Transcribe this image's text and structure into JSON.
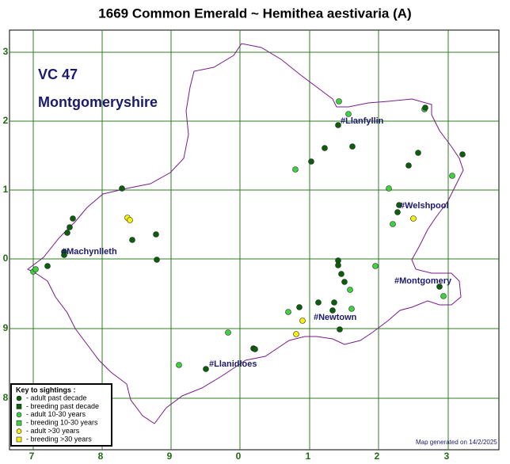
{
  "title": "1669 Common Emerald ~ Hemithea aestivaria (A)",
  "vc": "VC 47",
  "area": "Montgomeryshire",
  "grid": {
    "x_labels": [
      "7",
      "8",
      "9",
      "0",
      "1",
      "2",
      "3"
    ],
    "y_labels": [
      "3",
      "2",
      "1",
      "0",
      "9",
      "8"
    ]
  },
  "towns": [
    "#Llanfyllin",
    "#Welshpool",
    "#Machynlleth",
    "#Montgomery",
    "#Newtown",
    "#Llanidloes"
  ],
  "key": {
    "title": "Key to sightings :",
    "items": [
      "- adult past decade",
      "- breeding past decade",
      "- adult 10-30 years",
      "- breeding 10-30 years",
      "- adult >30 years",
      "- breeding >30 years"
    ]
  },
  "footer": "Map generated on 14/2/2025"
}
